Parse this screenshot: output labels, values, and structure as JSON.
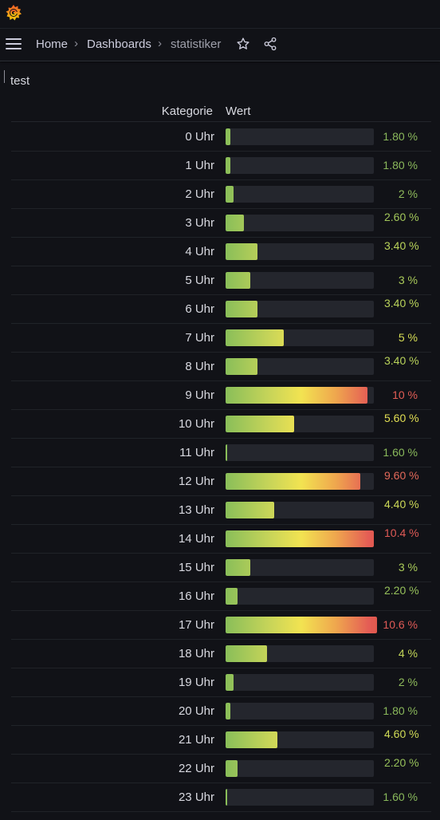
{
  "nav": {
    "breadcrumb": [
      "Home",
      "Dashboards",
      "statistiker"
    ]
  },
  "panel": {
    "title": "test",
    "columns": {
      "category": "Kategorie",
      "value": "Wert"
    },
    "rows": [
      {
        "label": "0 Uhr",
        "display": "1.80 %",
        "value": 1.8,
        "color": "#8ab85b",
        "wrap": false
      },
      {
        "label": "1 Uhr",
        "display": "1.80 %",
        "value": 1.8,
        "color": "#8ab85b",
        "wrap": false
      },
      {
        "label": "2 Uhr",
        "display": "2 %",
        "value": 2.0,
        "color": "#8fbb5b",
        "wrap": false
      },
      {
        "label": "3 Uhr",
        "display": "2.60 %",
        "value": 2.6,
        "color": "#a2c65a",
        "wrap": true
      },
      {
        "label": "4 Uhr",
        "display": "3.40 %",
        "value": 3.4,
        "color": "#b9d35a",
        "wrap": true
      },
      {
        "label": "5 Uhr",
        "display": "3 %",
        "value": 3.0,
        "color": "#aacb59",
        "wrap": false
      },
      {
        "label": "6 Uhr",
        "display": "3.40 %",
        "value": 3.4,
        "color": "#b9d35a",
        "wrap": true
      },
      {
        "label": "7 Uhr",
        "display": "5 %",
        "value": 5.0,
        "color": "#d7de55",
        "wrap": false
      },
      {
        "label": "8 Uhr",
        "display": "3.40 %",
        "value": 3.4,
        "color": "#b9d35a",
        "wrap": true
      },
      {
        "label": "9 Uhr",
        "display": "10 %",
        "value": 10.0,
        "color": "#e25d55",
        "wrap": false
      },
      {
        "label": "10 Uhr",
        "display": "5.60 %",
        "value": 5.6,
        "color": "#e2df53",
        "wrap": true
      },
      {
        "label": "11 Uhr",
        "display": "1.60 %",
        "value": 1.6,
        "color": "#89b95b",
        "wrap": false
      },
      {
        "label": "12 Uhr",
        "display": "9.60 %",
        "value": 9.6,
        "color": "#e3695a",
        "wrap": true
      },
      {
        "label": "13 Uhr",
        "display": "4.40 %",
        "value": 4.4,
        "color": "#ccd957",
        "wrap": true
      },
      {
        "label": "14 Uhr",
        "display": "10.4 %",
        "value": 10.4,
        "color": "#e05a56",
        "wrap": true
      },
      {
        "label": "15 Uhr",
        "display": "3 %",
        "value": 3.0,
        "color": "#aacb59",
        "wrap": false
      },
      {
        "label": "16 Uhr",
        "display": "2.20 %",
        "value": 2.2,
        "color": "#96c05a",
        "wrap": true
      },
      {
        "label": "17 Uhr",
        "display": "10.6 %",
        "value": 10.6,
        "color": "#e05a56",
        "wrap": false
      },
      {
        "label": "18 Uhr",
        "display": "4 %",
        "value": 4.0,
        "color": "#c3d658",
        "wrap": false
      },
      {
        "label": "19 Uhr",
        "display": "2 %",
        "value": 2.0,
        "color": "#8fbb5b",
        "wrap": false
      },
      {
        "label": "20 Uhr",
        "display": "1.80 %",
        "value": 1.8,
        "color": "#8ab85b",
        "wrap": false
      },
      {
        "label": "21 Uhr",
        "display": "4.60 %",
        "value": 4.6,
        "color": "#d0db56",
        "wrap": true
      },
      {
        "label": "22 Uhr",
        "display": "2.20 %",
        "value": 2.2,
        "color": "#96c05a",
        "wrap": true
      },
      {
        "label": "23 Uhr",
        "display": "1.60 %",
        "value": 1.6,
        "color": "#89b95b",
        "wrap": false
      }
    ],
    "scale_max": 10.6,
    "scale_min": 1.6
  }
}
